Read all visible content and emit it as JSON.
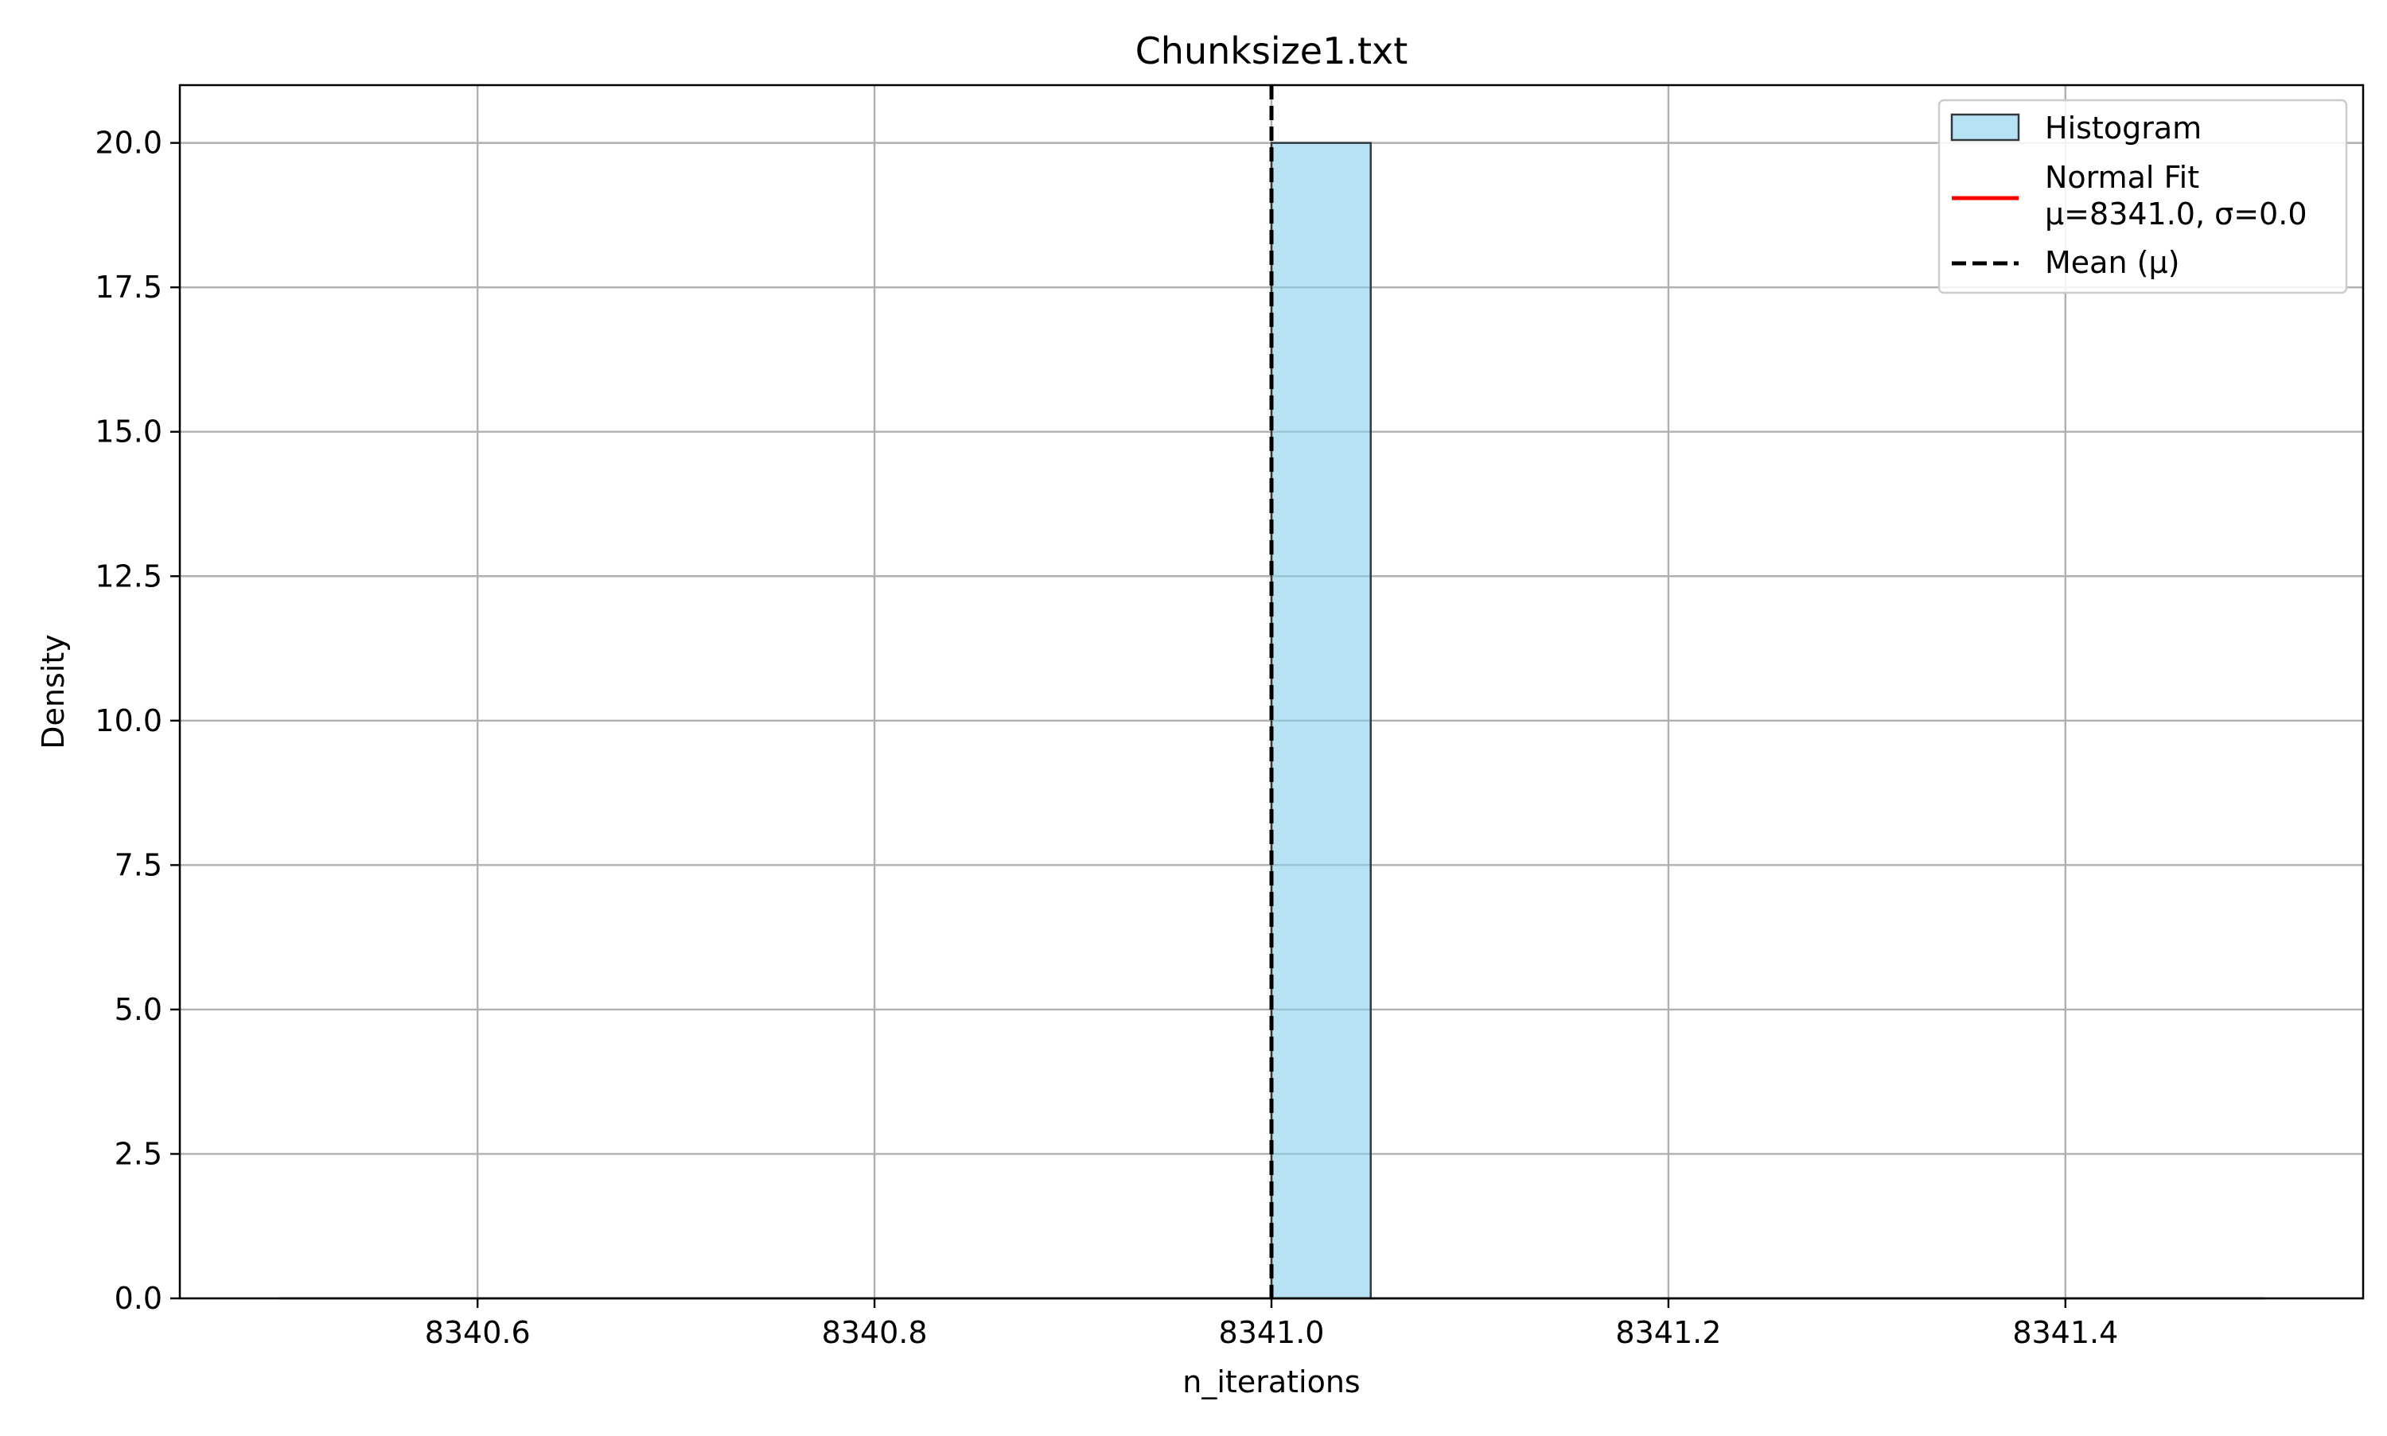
{
  "chart_data": {
    "type": "bar",
    "title": "Chunksize1.txt",
    "xlabel": "n_iterations",
    "ylabel": "Density",
    "xlim": [
      8340.45,
      8341.55
    ],
    "ylim": [
      0,
      21
    ],
    "x_ticks": [
      8340.6,
      8340.8,
      8341.0,
      8341.2,
      8341.4
    ],
    "x_tick_labels": [
      "8340.6",
      "8340.8",
      "8341.0",
      "8341.2",
      "8341.4"
    ],
    "y_ticks": [
      0,
      2.5,
      5,
      7.5,
      10,
      12.5,
      15,
      17.5,
      20
    ],
    "y_tick_labels": [
      "0.0",
      "2.5",
      "5.0",
      "7.5",
      "10.0",
      "12.5",
      "15.0",
      "17.5",
      "20.0"
    ],
    "grid": true,
    "legend_position": "top-right",
    "histogram": {
      "name": "Histogram",
      "bins": [
        {
          "x0": 8341.0,
          "x1": 8341.05,
          "density": 20.0
        }
      ],
      "fill": "#87ceeb",
      "edge": "#2f3a40"
    },
    "normal_fit": {
      "name": "Normal Fit\nμ=8341.0, σ=0.0",
      "x": [
        8340.5,
        8341.5
      ],
      "y": [
        0,
        0
      ],
      "color": "#ff0000"
    },
    "mean_line": {
      "name": "Mean (μ)",
      "x": 8341.0,
      "color": "#000000",
      "style": "dashed"
    },
    "legend": [
      {
        "label": "Histogram",
        "kind": "patch"
      },
      {
        "label": "Normal Fit\nμ=8341.0, σ=0.0",
        "kind": "line"
      },
      {
        "label": "Mean (μ)",
        "kind": "dashed"
      }
    ]
  }
}
